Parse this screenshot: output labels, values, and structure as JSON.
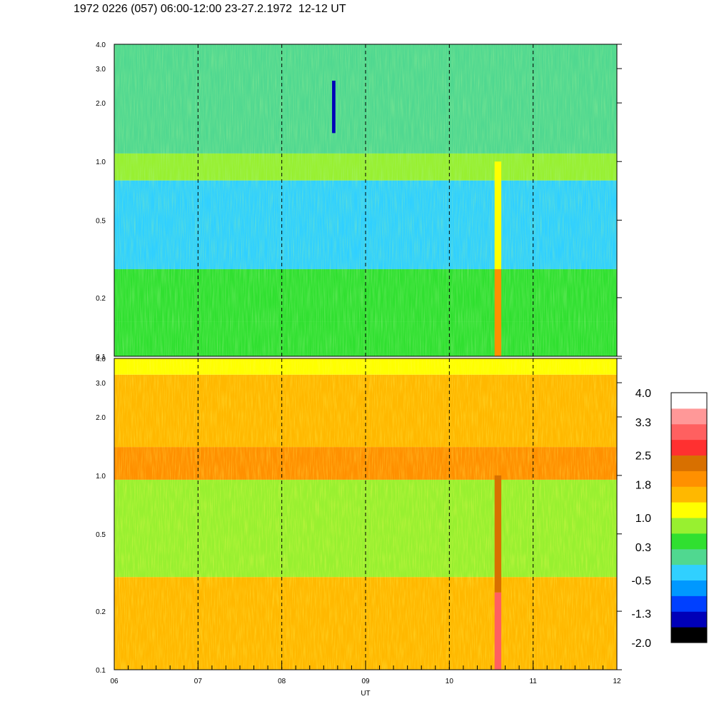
{
  "header": {
    "title": "1972 0226 (057) 06:00-12:00 23-27.2.1972  12-12 UT"
  },
  "chart_data": {
    "type": "heatmap",
    "title": "1972 0226 (057) 06:00-12:00 23-27.2.1972  12-12 UT",
    "xlabel": "UT",
    "xlim": [
      6,
      12
    ],
    "x_ticks": [
      "06",
      "07",
      "08",
      "09",
      "10",
      "11",
      "12"
    ],
    "x_tick_values": [
      6,
      7,
      8,
      9,
      10,
      11,
      12
    ],
    "x_dashed_lines": [
      7,
      8,
      9,
      10,
      11
    ],
    "y_scale": "log",
    "grid": false,
    "panels": [
      {
        "name": "upper",
        "ylim": [
          0.1,
          4.0
        ],
        "y_ticks": [
          "0.1",
          "0.2",
          "0.5",
          "1.0",
          "2.0",
          "3.0",
          "4.0"
        ],
        "y_tick_values": [
          0.1,
          0.2,
          0.5,
          1.0,
          2.0,
          3.0,
          4.0
        ],
        "bands": [
          {
            "y0": 0.1,
            "y1": 0.15,
            "level": 0.3
          },
          {
            "y0": 0.15,
            "y1": 0.28,
            "level": 0.5
          },
          {
            "y0": 0.28,
            "y1": 0.8,
            "level": -0.5
          },
          {
            "y0": 0.8,
            "y1": 1.1,
            "level": 0.8
          },
          {
            "y0": 1.1,
            "y1": 4.0,
            "level": 0.0
          }
        ],
        "events": [
          {
            "x": 10.58,
            "x_width": 0.08,
            "y0": 0.1,
            "y1": 0.28,
            "level": 1.8
          },
          {
            "x": 10.58,
            "x_width": 0.08,
            "y0": 0.28,
            "y1": 1.0,
            "level": 1.0
          },
          {
            "x": 8.62,
            "x_width": 0.04,
            "y0": 1.4,
            "y1": 2.6,
            "level": -1.3
          }
        ]
      },
      {
        "name": "lower",
        "ylim": [
          0.1,
          4.0
        ],
        "y_ticks": [
          "0.1",
          "0.2",
          "0.5",
          "1.0",
          "2.0",
          "3.0",
          "4.0"
        ],
        "y_tick_values": [
          0.1,
          0.2,
          0.5,
          1.0,
          2.0,
          3.0,
          4.0
        ],
        "bands": [
          {
            "y0": 0.1,
            "y1": 0.3,
            "level": 1.6
          },
          {
            "y0": 0.3,
            "y1": 0.95,
            "level": 0.8
          },
          {
            "y0": 0.95,
            "y1": 1.4,
            "level": 1.9
          },
          {
            "y0": 1.4,
            "y1": 3.3,
            "level": 1.6
          },
          {
            "y0": 3.3,
            "y1": 4.0,
            "level": 1.0
          }
        ],
        "events": [
          {
            "x": 10.58,
            "x_width": 0.08,
            "y0": 0.1,
            "y1": 0.25,
            "level": 3.0
          },
          {
            "x": 10.58,
            "x_width": 0.08,
            "y0": 0.25,
            "y1": 1.0,
            "level": 2.4
          }
        ]
      }
    ],
    "colorbar": {
      "tick_labels": [
        "4.0",
        "3.3",
        "2.5",
        "1.8",
        "1.0",
        "0.3",
        "-0.5",
        "-1.3",
        "-2.0"
      ],
      "tick_values": [
        4.0,
        3.3,
        2.5,
        1.8,
        1.0,
        0.3,
        -0.5,
        -1.3,
        -2.0
      ],
      "range": [
        -2.0,
        4.0
      ],
      "colors_bottom_to_top": [
        "#000000",
        "#0000b8",
        "#0040ff",
        "#0098ff",
        "#30d0ff",
        "#50d890",
        "#30e030",
        "#98f030",
        "#ffff00",
        "#ffb800",
        "#ff9000",
        "#d87000",
        "#ff3030",
        "#ff6060",
        "#ff9898",
        "#ffffff"
      ]
    }
  }
}
